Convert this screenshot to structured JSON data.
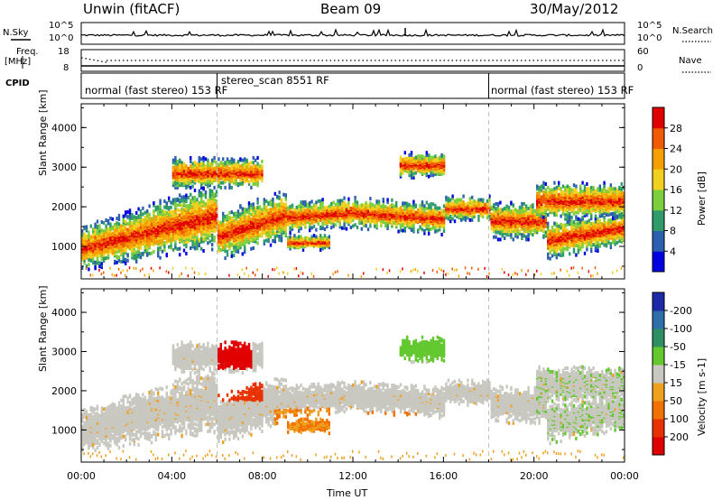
{
  "header": {
    "radar": "Unwin (fitACF)",
    "beam": "Beam 09",
    "date": "30/May/2012"
  },
  "noise_panel": {
    "left_label": "N.Sky",
    "left_ticks": [
      "10^5",
      "10^0"
    ],
    "right_label": "N.Search",
    "right_ticks": [
      "10^5",
      "10^0"
    ]
  },
  "freq_panel": {
    "left_label_1": "Freq.",
    "left_label_2": "[MHz]",
    "left_ticks": [
      "18",
      "8"
    ],
    "right_label": "Nave",
    "right_ticks": [
      "60",
      "0"
    ]
  },
  "cpid": {
    "label": "CPID",
    "segments": [
      {
        "text": "normal (fast stereo) 153 RF",
        "start": "00:00"
      },
      {
        "text": "stereo_scan 8551 RF",
        "start": "06:00"
      },
      {
        "text": "normal (fast stereo) 153 RF",
        "start": "18:00"
      }
    ]
  },
  "chart_data": [
    {
      "type": "heatmap",
      "quantity": "power",
      "ylabel": "Slant Range [km]",
      "ylim": [
        180,
        4600
      ],
      "yticks": [
        "1000",
        "2000",
        "3000",
        "4000"
      ],
      "xlim_hours": [
        0,
        24
      ],
      "colorbar": {
        "label": "Power [dB]",
        "ticks": [
          "4",
          "8",
          "12",
          "16",
          "20",
          "24",
          "28"
        ],
        "colors": [
          "#0000e0",
          "#2c5fb0",
          "#2f9a6a",
          "#7ccf3c",
          "#f2d020",
          "#f5a000",
          "#f05a00",
          "#e00000"
        ]
      }
    },
    {
      "type": "heatmap",
      "quantity": "velocity",
      "ylabel": "Slant Range [km]",
      "ylim": [
        180,
        4600
      ],
      "yticks": [
        "1000",
        "2000",
        "3000",
        "4000"
      ],
      "xlim_hours": [
        0,
        24
      ],
      "colorbar": {
        "label": "Velocity [m s-1]",
        "ticks": [
          "200",
          "100",
          "50",
          "15",
          "-15",
          "-50",
          "-100",
          "-200"
        ],
        "colors": [
          "#1c2aa8",
          "#2d6fa8",
          "#2e8f62",
          "#63c830",
          "#c8c8c0",
          "#f0a020",
          "#f07000",
          "#e83000",
          "#e00000"
        ]
      }
    }
  ],
  "xaxis": {
    "label": "Time UT",
    "ticks": [
      "00:00",
      "04:00",
      "08:00",
      "12:00",
      "16:00",
      "20:00",
      "00:00"
    ]
  }
}
